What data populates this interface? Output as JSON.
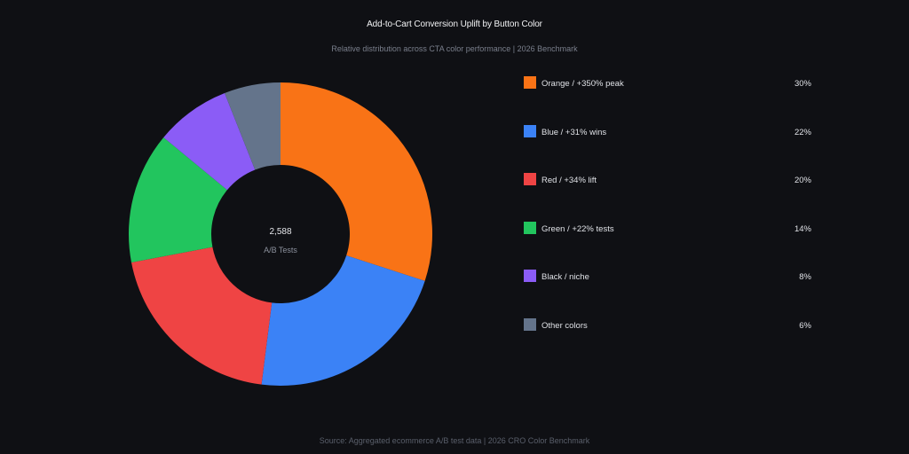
{
  "title": "Add-to-Cart Conversion Uplift by Button Color",
  "subtitle": "Relative distribution across CTA color performance | 2026 Benchmark",
  "source": "Source: Aggregated ecommerce A/B test data | 2026 CRO Color Benchmark",
  "center": {
    "value": "2,588",
    "label": "A/B Tests"
  },
  "chart_data": {
    "type": "pie",
    "variant": "donut",
    "categories": [
      "Orange / +350% peak",
      "Blue / +31% wins",
      "Red / +34% lift",
      "Green / +22% tests",
      "Black / niche",
      "Other colors"
    ],
    "values": [
      30,
      22,
      20,
      14,
      8,
      6
    ],
    "value_labels": [
      "30%",
      "22%",
      "20%",
      "14%",
      "8%",
      "6%"
    ],
    "colors": [
      "#f97316",
      "#3b82f6",
      "#ef4444",
      "#22c55e",
      "#8b5cf6",
      "#64748b"
    ],
    "legend_position": "right"
  }
}
